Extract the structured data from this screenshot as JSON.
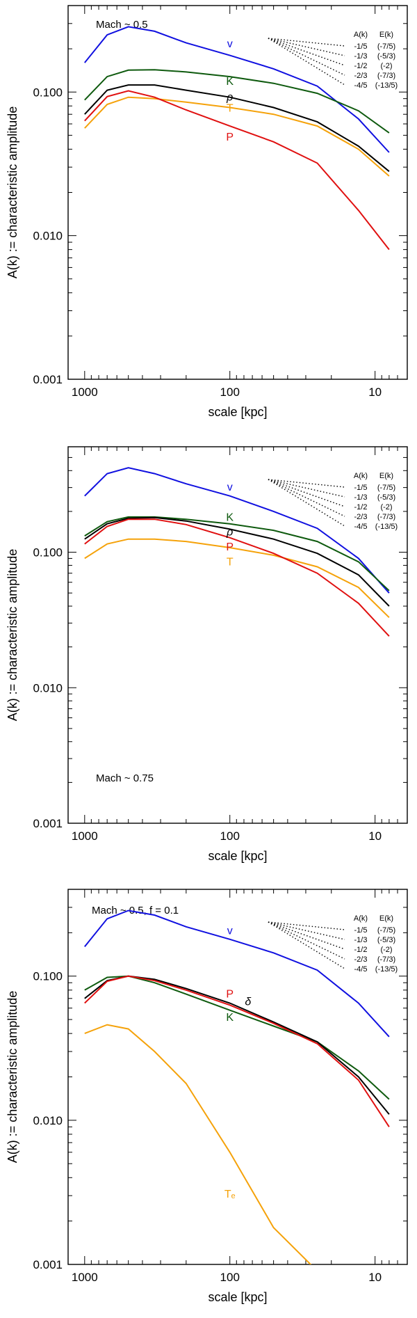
{
  "figure_title": "",
  "colors": {
    "v": "#1010e0",
    "K": "#0e5a0e",
    "rho": "#000000",
    "T": "#f5a20a",
    "P": "#e01010"
  },
  "legend_box": {
    "header_a": "A(k)",
    "header_e": "E(k)",
    "slopes": [
      "-1/5",
      "-1/3",
      "-1/2",
      "-2/3",
      "-4/5"
    ],
    "energy": [
      "(-7/5)",
      "(-5/3)",
      "(-2)",
      "(-7/3)",
      "(-13/5)"
    ]
  },
  "chart_data": [
    {
      "type": "line",
      "title": "",
      "annotation": "Mach ~ 0.5",
      "xlabel": "scale [kpc]",
      "ylabel": "A(k) := characteristic amplitude",
      "xscale": "log-reversed",
      "yscale": "log",
      "xlim": [
        1300,
        6
      ],
      "ylim": [
        0.001,
        0.4
      ],
      "xticks": [
        "1000",
        "100",
        "10"
      ],
      "yticks": [
        "0.001",
        "0.010",
        "0.100"
      ],
      "x": [
        1000,
        700,
        500,
        330,
        200,
        100,
        50,
        25,
        13,
        8
      ],
      "series": [
        {
          "name": "v",
          "label": "v",
          "values": [
            0.16,
            0.25,
            0.285,
            0.265,
            0.22,
            0.18,
            0.145,
            0.11,
            0.065,
            0.038
          ]
        },
        {
          "name": "K",
          "label": "K",
          "values": [
            0.088,
            0.128,
            0.142,
            0.143,
            0.138,
            0.128,
            0.115,
            0.098,
            0.074,
            0.052
          ]
        },
        {
          "name": "rho",
          "label": "ρ",
          "values": [
            0.07,
            0.103,
            0.112,
            0.112,
            0.103,
            0.092,
            0.078,
            0.062,
            0.042,
            0.028
          ]
        },
        {
          "name": "T",
          "label": "T",
          "values": [
            0.056,
            0.082,
            0.092,
            0.09,
            0.085,
            0.078,
            0.07,
            0.058,
            0.04,
            0.026
          ]
        },
        {
          "name": "P",
          "label": "P",
          "values": [
            0.063,
            0.093,
            0.102,
            0.092,
            0.075,
            0.058,
            0.045,
            0.032,
            0.015,
            0.008
          ]
        }
      ]
    },
    {
      "type": "line",
      "title": "",
      "annotation": "Mach ~ 0.75",
      "xlabel": "scale [kpc]",
      "ylabel": "A(k) := characteristic amplitude",
      "xscale": "log-reversed",
      "yscale": "log",
      "xlim": [
        1300,
        6
      ],
      "ylim": [
        0.001,
        0.6
      ],
      "xticks": [
        "1000",
        "100",
        "10"
      ],
      "yticks": [
        "0.001",
        "0.010",
        "0.100"
      ],
      "x": [
        1000,
        700,
        500,
        330,
        200,
        100,
        50,
        25,
        13,
        8
      ],
      "series": [
        {
          "name": "v",
          "label": "v",
          "values": [
            0.26,
            0.38,
            0.42,
            0.38,
            0.32,
            0.26,
            0.2,
            0.15,
            0.09,
            0.05
          ]
        },
        {
          "name": "K",
          "label": "K",
          "values": [
            0.132,
            0.168,
            0.182,
            0.182,
            0.175,
            0.162,
            0.145,
            0.12,
            0.085,
            0.052
          ]
        },
        {
          "name": "rho",
          "label": "ρ",
          "values": [
            0.125,
            0.162,
            0.178,
            0.18,
            0.17,
            0.148,
            0.125,
            0.098,
            0.068,
            0.04
          ]
        },
        {
          "name": "T",
          "label": "T",
          "values": [
            0.09,
            0.115,
            0.125,
            0.125,
            0.12,
            0.108,
            0.095,
            0.078,
            0.055,
            0.033
          ]
        },
        {
          "name": "P",
          "label": "P",
          "values": [
            0.115,
            0.155,
            0.175,
            0.175,
            0.16,
            0.128,
            0.098,
            0.07,
            0.042,
            0.024
          ]
        }
      ]
    },
    {
      "type": "line",
      "title": "",
      "annotation": "Mach ~ 0.5, f = 0.1",
      "xlabel": "scale [kpc]",
      "ylabel": "A(k) := characteristic amplitude",
      "xscale": "log-reversed",
      "yscale": "log",
      "xlim": [
        1300,
        6
      ],
      "ylim": [
        0.001,
        0.4
      ],
      "xticks": [
        "1000",
        "100",
        "10"
      ],
      "yticks": [
        "0.001",
        "0.010",
        "0.100"
      ],
      "x": [
        1000,
        700,
        500,
        330,
        200,
        100,
        50,
        25,
        13,
        8
      ],
      "series": [
        {
          "name": "v",
          "label": "v",
          "values": [
            0.16,
            0.25,
            0.285,
            0.265,
            0.22,
            0.18,
            0.145,
            0.11,
            0.065,
            0.038
          ]
        },
        {
          "name": "K",
          "label": "K",
          "values": [
            0.08,
            0.098,
            0.1,
            0.09,
            0.075,
            0.058,
            0.045,
            0.035,
            0.022,
            0.014
          ]
        },
        {
          "name": "delta",
          "label": "δ",
          "values": [
            0.07,
            0.093,
            0.1,
            0.095,
            0.082,
            0.065,
            0.048,
            0.035,
            0.02,
            0.011
          ]
        },
        {
          "name": "P",
          "label": "P",
          "values": [
            0.065,
            0.092,
            0.1,
            0.093,
            0.08,
            0.063,
            0.047,
            0.034,
            0.019,
            0.009
          ]
        },
        {
          "name": "Te",
          "label": "Tₑ",
          "values": [
            0.04,
            0.046,
            0.043,
            0.03,
            0.018,
            0.006,
            0.0018,
            0.0009,
            null,
            null
          ]
        }
      ]
    }
  ]
}
